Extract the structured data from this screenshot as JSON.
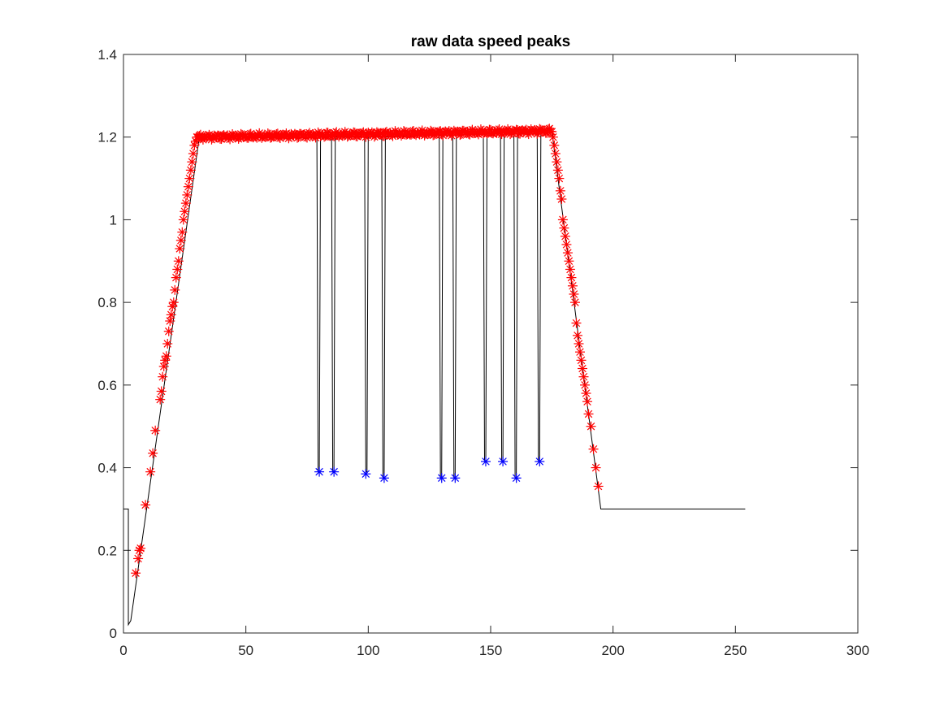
{
  "chart_data": {
    "type": "line",
    "title": "raw data speed peaks",
    "xlabel": "",
    "ylabel": "",
    "xlim": [
      0,
      300
    ],
    "ylim": [
      0,
      1.4
    ],
    "xticks": [
      0,
      50,
      100,
      150,
      200,
      250,
      300
    ],
    "xtick_labels": [
      "0",
      "50",
      "100",
      "150",
      "200",
      "250",
      "300"
    ],
    "yticks": [
      0,
      0.2,
      0.4,
      0.6,
      0.8,
      1,
      1.2,
      1.4
    ],
    "ytick_labels": [
      "0",
      "0.2",
      "0.4",
      "0.6",
      "0.8",
      "1",
      "1.2",
      "1.4"
    ],
    "grid": false,
    "legend": "none",
    "series": [
      {
        "style": "black solid line",
        "color": "#000000",
        "x": [
          0,
          2,
          2,
          3,
          31,
          79,
          79.5,
          80,
          80.5,
          85,
          85.5,
          86,
          86.5,
          98.5,
          99,
          99.5,
          100,
          105.5,
          106,
          106.5,
          107,
          129,
          129.5,
          130,
          130.5,
          134.5,
          135,
          135.5,
          136,
          147,
          147.5,
          148,
          148.5,
          154,
          154.5,
          155,
          155.5,
          159.5,
          160,
          160.5,
          161,
          169,
          169.5,
          170,
          170.5,
          175,
          195,
          254
        ],
        "y": [
          0.3,
          0.3,
          0.02,
          0.03,
          1.2,
          1.2,
          0.39,
          0.39,
          1.2,
          1.2,
          0.39,
          0.39,
          1.2,
          1.2,
          0.39,
          0.39,
          1.2,
          1.2,
          0.375,
          0.375,
          1.2,
          1.205,
          0.375,
          0.375,
          1.205,
          1.205,
          0.375,
          0.375,
          1.205,
          1.208,
          0.415,
          0.415,
          1.208,
          1.21,
          0.415,
          0.415,
          1.21,
          1.21,
          0.375,
          0.375,
          1.21,
          1.212,
          0.415,
          0.415,
          1.212,
          1.215,
          0.3,
          0.3
        ]
      },
      {
        "name": "",
        "style": "red asterisk markers",
        "color": "#ff0000",
        "x": [
          5,
          6,
          6.5,
          7,
          9,
          11,
          12,
          13,
          15,
          15.5,
          16,
          16.5,
          17,
          17.5,
          18,
          18.5,
          19,
          19.5,
          20,
          20.5,
          21,
          21.5,
          22,
          22.5,
          23,
          23.5,
          24,
          24.5,
          25,
          25.5,
          26,
          26.5,
          27,
          27.5,
          28,
          28.5,
          29,
          29.5,
          30,
          30.5,
          31,
          175.5,
          176,
          176.5,
          177,
          177.5,
          178,
          178.5,
          179,
          179.5,
          180,
          180.5,
          181,
          181.5,
          182,
          182.5,
          183,
          183.5,
          184,
          184.5,
          185,
          185.5,
          186,
          186.5,
          187,
          187.5,
          188,
          188.5,
          189,
          189.5,
          190,
          191,
          192,
          193,
          194
        ],
        "y": [
          0.145,
          0.18,
          0.2,
          0.205,
          0.31,
          0.39,
          0.435,
          0.49,
          0.565,
          0.585,
          0.62,
          0.645,
          0.66,
          0.67,
          0.7,
          0.73,
          0.755,
          0.77,
          0.79,
          0.8,
          0.83,
          0.86,
          0.88,
          0.9,
          0.93,
          0.95,
          0.97,
          1.0,
          1.02,
          1.04,
          1.06,
          1.08,
          1.1,
          1.12,
          1.14,
          1.16,
          1.18,
          1.19,
          1.2,
          1.2,
          1.2,
          1.2,
          1.18,
          1.16,
          1.14,
          1.12,
          1.1,
          1.07,
          1.05,
          1.0,
          0.98,
          0.96,
          0.94,
          0.92,
          0.9,
          0.88,
          0.86,
          0.84,
          0.82,
          0.8,
          0.75,
          0.72,
          0.7,
          0.68,
          0.66,
          0.64,
          0.62,
          0.6,
          0.58,
          0.56,
          0.53,
          0.5,
          0.445,
          0.4,
          0.355
        ]
      },
      {
        "name": "",
        "style": "red asterisk markers (plateau)",
        "color": "#ff0000",
        "x_start": 31,
        "x_end": 175,
        "x_step": 0.5,
        "y_start": 1.2,
        "y_end": 1.215
      },
      {
        "name": "",
        "style": "blue asterisk markers",
        "color": "#0000ff",
        "x": [
          80,
          86,
          99,
          106.5,
          130,
          135.5,
          148,
          155,
          160.5,
          170
        ],
        "y": [
          0.39,
          0.39,
          0.385,
          0.375,
          0.375,
          0.375,
          0.415,
          0.415,
          0.375,
          0.415
        ]
      }
    ]
  }
}
